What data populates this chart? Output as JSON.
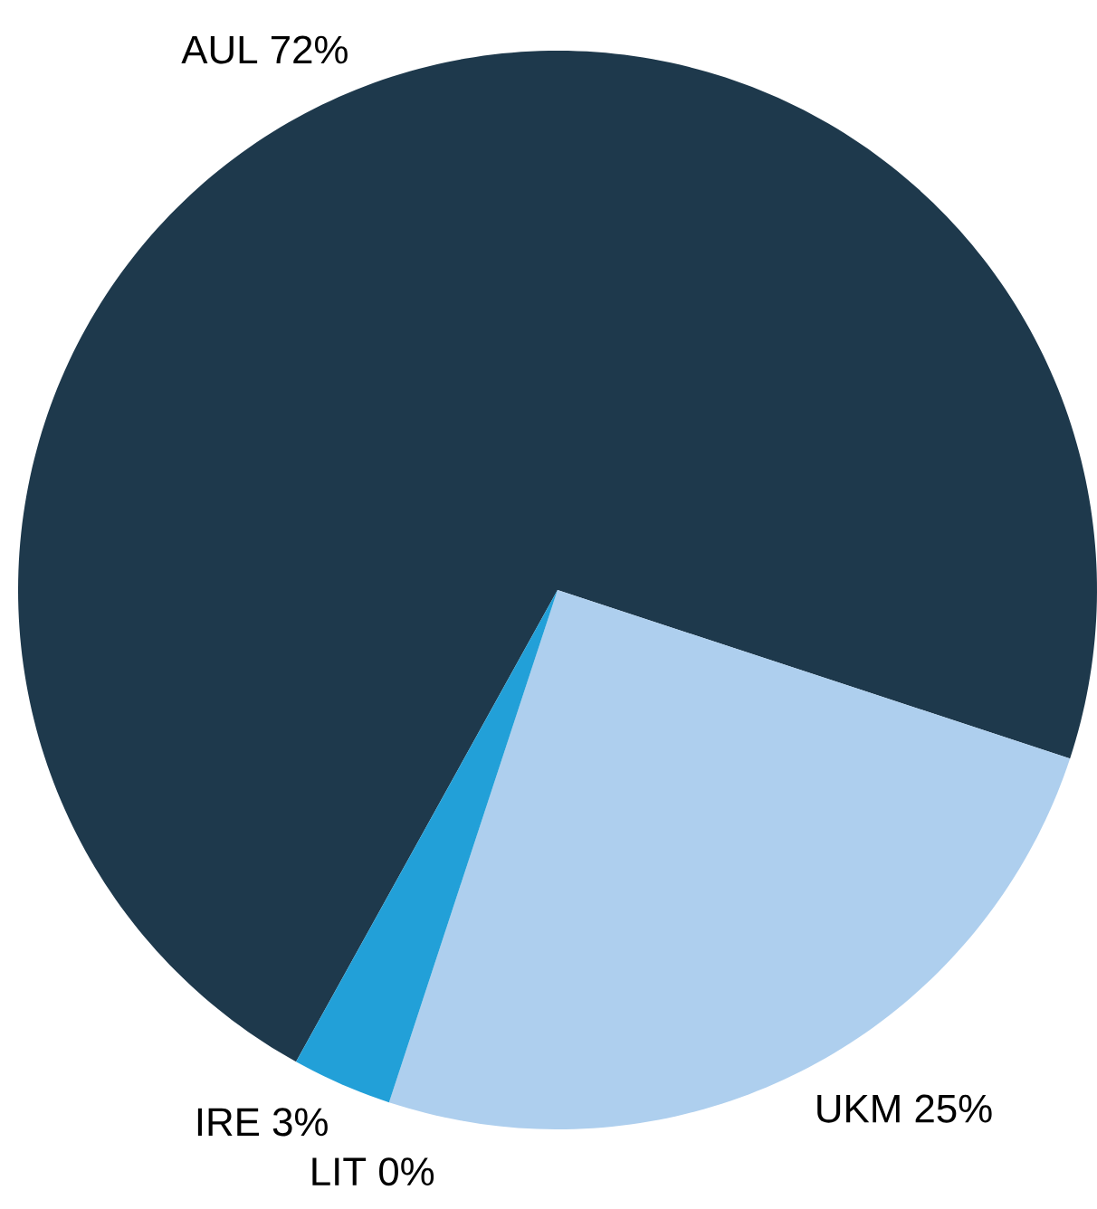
{
  "chart_data": {
    "type": "pie",
    "categories": [
      "AUL",
      "UKM",
      "LIT",
      "IRE"
    ],
    "values": [
      72,
      25,
      0,
      3
    ],
    "value_labels": [
      "72%",
      "25%",
      "0%",
      "3%"
    ],
    "colors": [
      "#1e394c",
      "#aecfee",
      "#2a6f97",
      "#22a0d8"
    ]
  }
}
